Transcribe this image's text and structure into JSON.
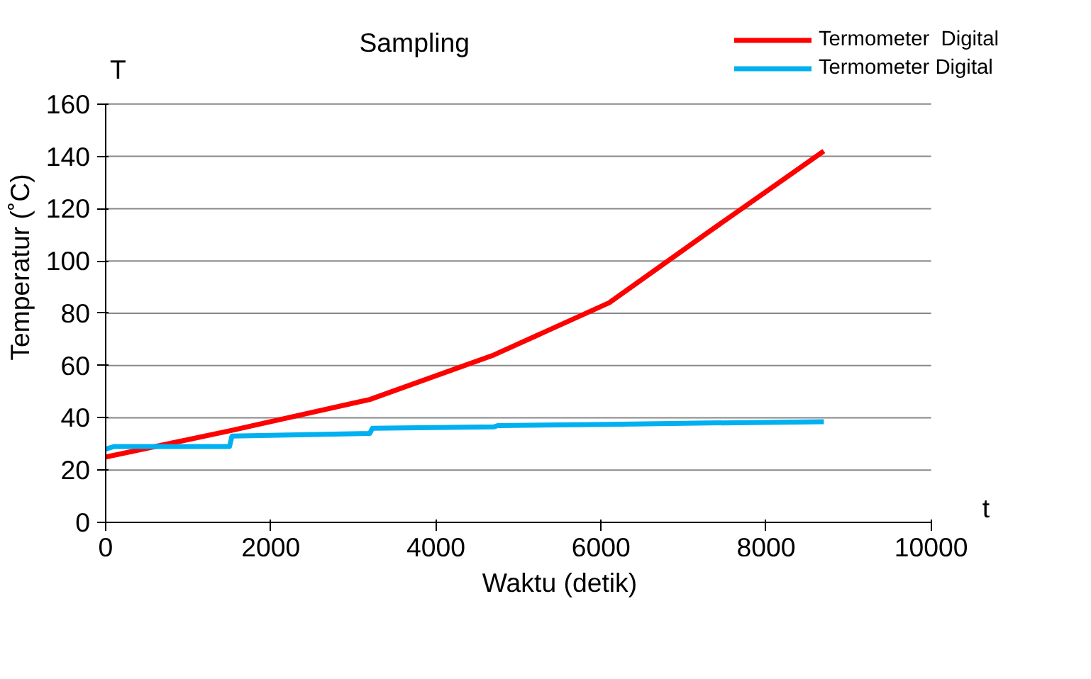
{
  "chart_data": {
    "type": "line",
    "title": "Sampling",
    "xlabel": "Waktu (detik)",
    "ylabel": "Temperatur (˚C)",
    "annotations": [
      "T",
      "t"
    ],
    "xlim": [
      0,
      10000
    ],
    "xticks": [
      0,
      2000,
      4000,
      6000,
      8000,
      10000
    ],
    "ylim": [
      0,
      160
    ],
    "yticks": [
      0,
      20,
      40,
      60,
      80,
      100,
      120,
      140,
      160
    ],
    "grid": "y",
    "legend": "top right",
    "line_style": "solid",
    "marker": "none",
    "series": [
      {
        "name": "Termometer  Digital",
        "color": "#ff0000",
        "x": [
          0,
          1500,
          3200,
          4700,
          6100,
          7300,
          8700
        ],
        "values": [
          25,
          35,
          47,
          64,
          84,
          111,
          142
        ]
      },
      {
        "name": "Termometer Digital",
        "color": "#00b0f0",
        "x": [
          0,
          100,
          1500,
          1530,
          3200,
          3230,
          4700,
          4750,
          6100,
          7300,
          8700
        ],
        "values": [
          28,
          29,
          29,
          33,
          34,
          36,
          36.5,
          37,
          37.5,
          38,
          38.5
        ]
      }
    ]
  }
}
